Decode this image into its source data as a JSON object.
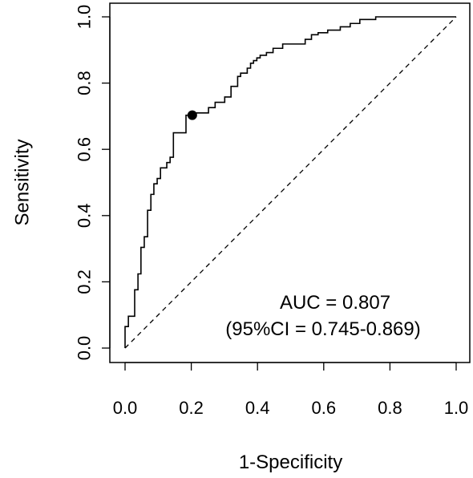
{
  "chart_data": {
    "type": "line",
    "title": "",
    "xlabel": "1-Specificity",
    "ylabel": "Sensitivity",
    "xlim": [
      0,
      1
    ],
    "ylim": [
      0,
      1
    ],
    "xticks": [
      "0.0",
      "0.2",
      "0.4",
      "0.6",
      "0.8",
      "1.0"
    ],
    "yticks": [
      "0.0",
      "0.2",
      "0.4",
      "0.6",
      "0.8",
      "1.0"
    ],
    "grid": false,
    "legend": "none",
    "annotations": [
      "AUC = 0.807",
      "(95%CI = 0.745-0.869)"
    ],
    "highlight_point": {
      "x": 0.203,
      "y": 0.703
    },
    "reference_line": {
      "x": [
        0,
        1
      ],
      "y": [
        0,
        1
      ],
      "style": "dashed"
    },
    "series": [
      {
        "x": [
          0,
          0,
          0.01,
          0.01,
          0.029,
          0.029,
          0.039,
          0.039,
          0.048,
          0.048,
          0.058,
          0.058,
          0.068,
          0.068,
          0.078,
          0.078,
          0.087,
          0.087,
          0.097,
          0.097,
          0.107,
          0.107,
          0.126,
          0.126,
          0.136,
          0.136,
          0.146,
          0.146,
          0.184,
          0.184,
          0.203,
          0.203,
          0.252,
          0.252,
          0.272,
          0.272,
          0.301,
          0.301,
          0.32,
          0.32,
          0.34,
          0.34,
          0.349,
          0.349,
          0.369,
          0.369,
          0.379,
          0.379,
          0.388,
          0.388,
          0.398,
          0.398,
          0.408,
          0.408,
          0.427,
          0.427,
          0.447,
          0.447,
          0.476,
          0.476,
          0.544,
          0.544,
          0.563,
          0.563,
          0.583,
          0.583,
          0.612,
          0.612,
          0.65,
          0.65,
          0.68,
          0.68,
          0.709,
          0.709,
          0.757,
          0.757,
          1.0
        ],
        "y": [
          0,
          0.065,
          0.065,
          0.096,
          0.096,
          0.176,
          0.176,
          0.224,
          0.224,
          0.304,
          0.304,
          0.336,
          0.336,
          0.416,
          0.416,
          0.464,
          0.464,
          0.496,
          0.496,
          0.512,
          0.512,
          0.544,
          0.544,
          0.56,
          0.56,
          0.576,
          0.576,
          0.65,
          0.65,
          0.703,
          0.703,
          0.71,
          0.71,
          0.726,
          0.726,
          0.742,
          0.742,
          0.758,
          0.758,
          0.79,
          0.79,
          0.82,
          0.82,
          0.83,
          0.83,
          0.845,
          0.845,
          0.86,
          0.86,
          0.868,
          0.868,
          0.876,
          0.876,
          0.884,
          0.884,
          0.892,
          0.892,
          0.905,
          0.905,
          0.918,
          0.918,
          0.932,
          0.932,
          0.946,
          0.946,
          0.952,
          0.952,
          0.96,
          0.96,
          0.97,
          0.97,
          0.98,
          0.98,
          0.992,
          0.992,
          1.0,
          1.0
        ]
      }
    ]
  }
}
